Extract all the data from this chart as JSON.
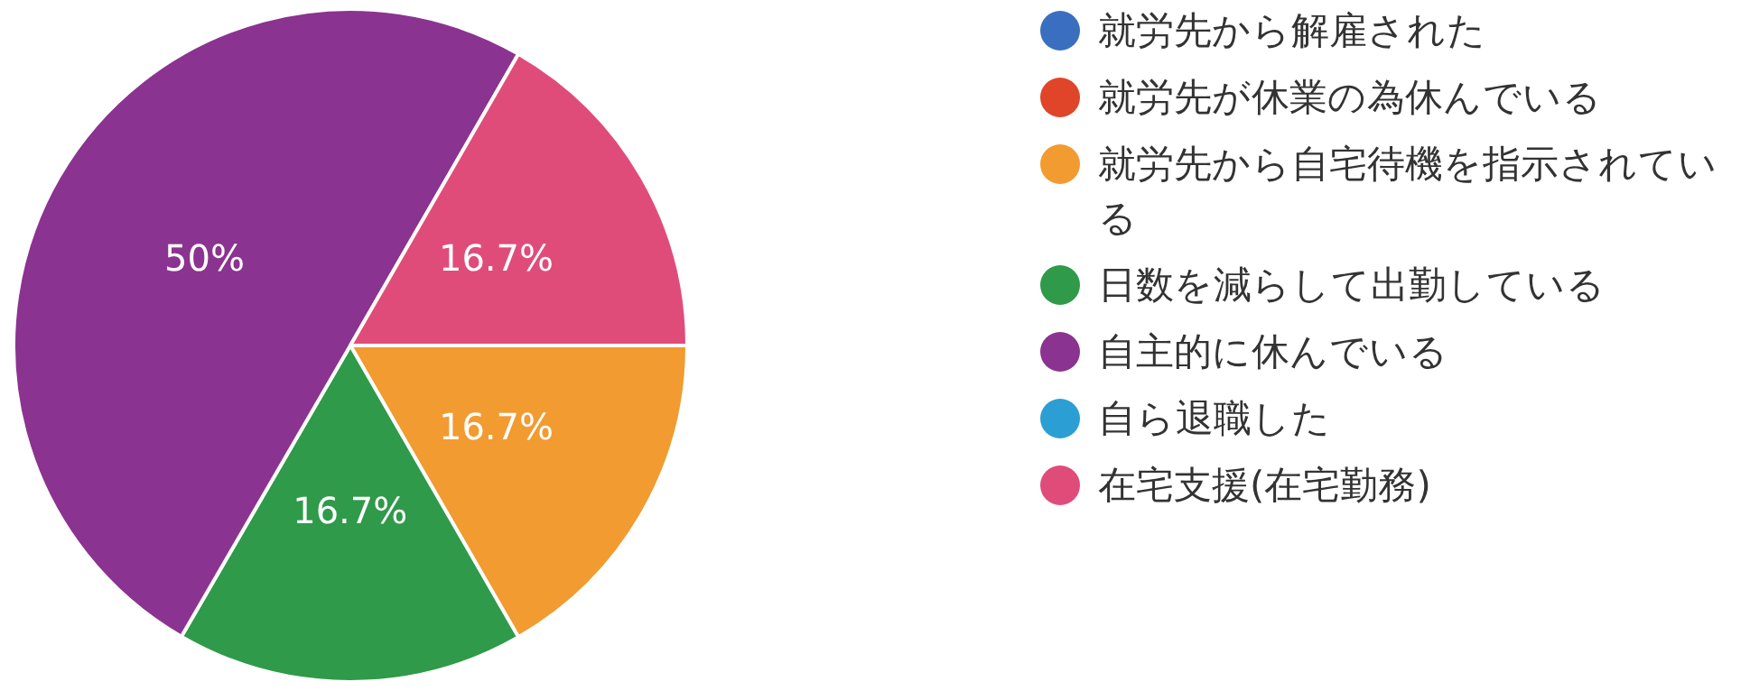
{
  "chart_data": {
    "type": "pie",
    "categories": [
      "就労先から解雇された",
      "就労先が休業の為休んでいる",
      "就労先から自宅待機を指示されている",
      "日数を減らして出勤している",
      "自主的に休んでいる",
      "自ら退職した",
      "在宅支援(在宅勤務)"
    ],
    "values": [
      0,
      0,
      16.7,
      16.7,
      50,
      0,
      16.7
    ],
    "value_labels": [
      null,
      null,
      "16.7%",
      "16.7%",
      "50%",
      null,
      "16.7%"
    ],
    "colors": [
      "#3a6fc0",
      "#e0452a",
      "#f29b30",
      "#2f9a4a",
      "#8b3390",
      "#2b9fd4",
      "#e04c7a"
    ],
    "legend": "right"
  }
}
